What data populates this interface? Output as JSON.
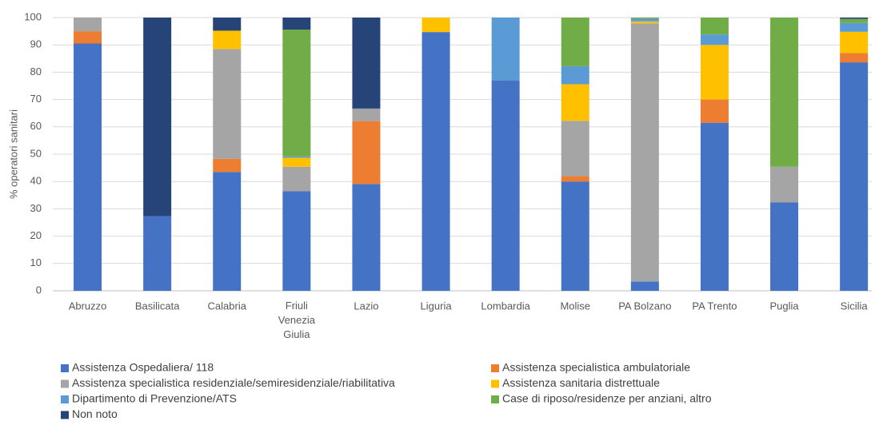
{
  "chart_data": {
    "type": "stacked-bar",
    "y_label": "% operatori sanitari",
    "categories": [
      "Abruzzo",
      "Basilicata",
      "Calabria",
      "Friuli Venezia Giulia",
      "Lazio",
      "Liguria",
      "Lombardia",
      "Molise",
      "PA Bolzano",
      "PA Trento",
      "Puglia",
      "Sicilia"
    ],
    "series": [
      {
        "name": "Assistenza Ospedaliera/ 118",
        "color": "#4472c4",
        "values": [
          90.5,
          27.3,
          43.5,
          36.4,
          39.1,
          94.7,
          76.9,
          40,
          3.4,
          61.5,
          32.4,
          83.6
        ]
      },
      {
        "name": "Assistenza specialistica ambulatoriale",
        "color": "#ed7d31",
        "values": [
          4.5,
          0,
          4.8,
          0,
          23,
          0,
          0,
          2,
          0,
          8.5,
          0,
          3.4
        ]
      },
      {
        "name": "Assistenza specialistica residenziale/semiresidenziale/riabilitativa",
        "color": "#a5a5a5",
        "values": [
          5,
          0,
          40.2,
          9,
          4.6,
          0,
          0,
          20.2,
          94.5,
          0,
          13,
          0
        ]
      },
      {
        "name": "Assistenza sanitaria distrettuale",
        "color": "#ffc000",
        "values": [
          0,
          0,
          6.7,
          3.3,
          0,
          5.3,
          0,
          13.4,
          0.7,
          20,
          0,
          7.8
        ]
      },
      {
        "name": "Dipartimento di Prevenzione/ATS",
        "color": "#5b9bd5",
        "values": [
          0,
          0,
          0,
          0.5,
          0,
          0,
          23.1,
          6.6,
          1,
          3.8,
          0,
          3.2
        ]
      },
      {
        "name": "Case di riposo/residenze per anziani, altro",
        "color": "#70ad47",
        "values": [
          0,
          0,
          0,
          46.4,
          0,
          0,
          0,
          17.8,
          0.4,
          6.2,
          54.6,
          1.5
        ]
      },
      {
        "name": "Non noto",
        "color": "#264478",
        "values": [
          0,
          72.7,
          4.8,
          4.4,
          33.3,
          0,
          0,
          0,
          0,
          0,
          0,
          0.5
        ]
      }
    ],
    "ylim": [
      0,
      100
    ],
    "yticks": [
      0,
      10,
      20,
      30,
      40,
      50,
      60,
      70,
      80,
      90,
      100
    ],
    "grid": true
  }
}
